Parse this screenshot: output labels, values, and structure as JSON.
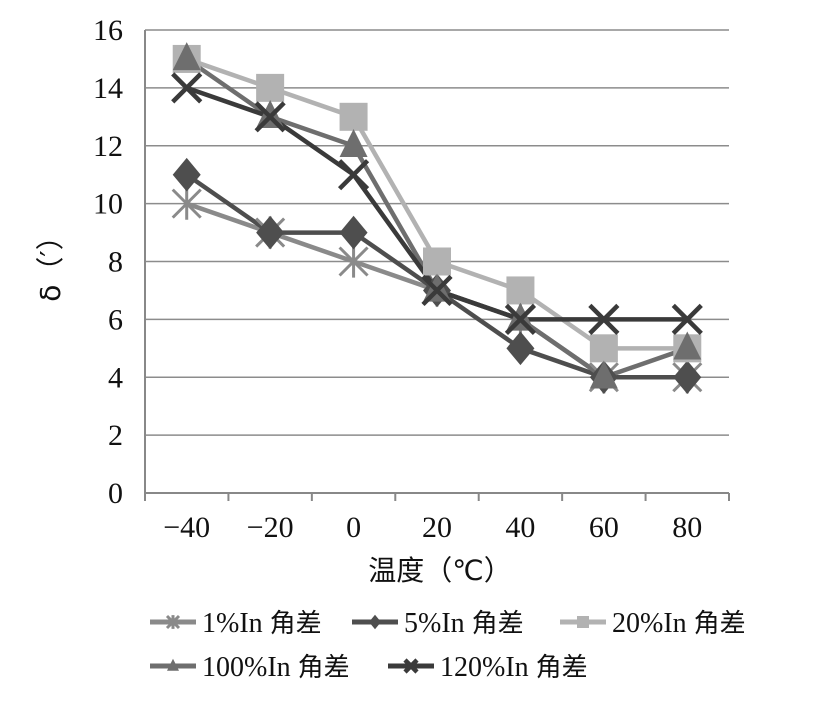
{
  "chart_data": {
    "type": "line",
    "title": "",
    "xlabel": "温度（℃）",
    "ylabel": "δ（′）",
    "x": [
      -40,
      -20,
      0,
      20,
      40,
      60,
      80
    ],
    "ylim": [
      0,
      16
    ],
    "yticks": [
      0,
      2,
      4,
      6,
      8,
      10,
      12,
      14,
      16
    ],
    "grid": true,
    "legend_position": "bottom",
    "series": [
      {
        "name": "1%In 角差",
        "values": [
          10,
          9,
          8,
          7,
          6,
          4,
          4
        ],
        "color": "#8a8a8a",
        "marker": "asterisk"
      },
      {
        "name": "5%In 角差",
        "values": [
          11,
          9,
          9,
          7,
          5,
          4,
          4
        ],
        "color": "#4e4e4e",
        "marker": "diamond"
      },
      {
        "name": "20%In 角差",
        "values": [
          15,
          14,
          13,
          8,
          7,
          5,
          5
        ],
        "color": "#b2b2b2",
        "marker": "square"
      },
      {
        "name": "100%In 角差",
        "values": [
          15,
          13,
          12,
          7,
          6,
          4,
          5
        ],
        "color": "#6e6e6e",
        "marker": "triangle"
      },
      {
        "name": "120%In 角差",
        "values": [
          14,
          13,
          11,
          7,
          6,
          6,
          6
        ],
        "color": "#3a3a3a",
        "marker": "x"
      }
    ]
  }
}
